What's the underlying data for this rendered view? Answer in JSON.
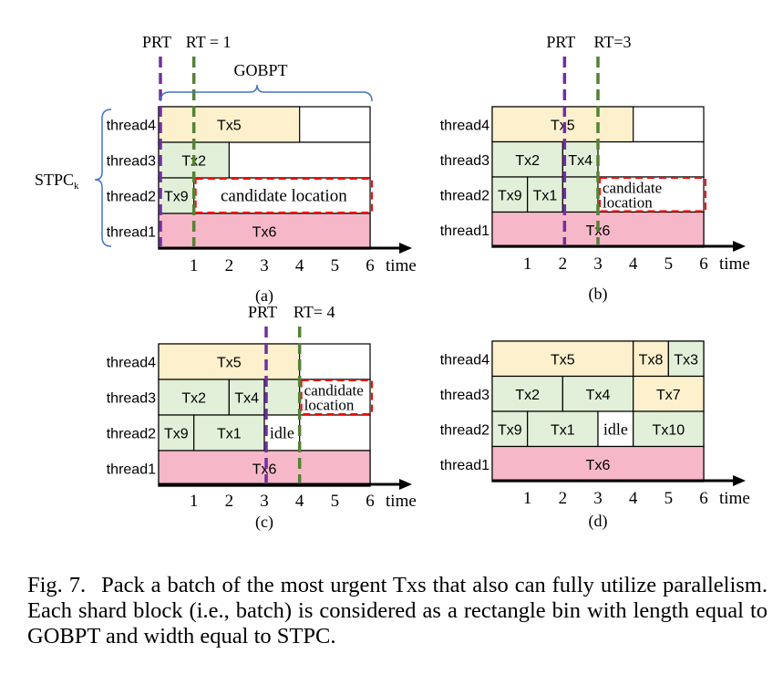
{
  "colors": {
    "tx5": "#fdf0cc",
    "tx_green": "#e2efd9",
    "tx6": "#f6b8c8",
    "prt_line": "#7030a0",
    "rt_line": "#548235",
    "candidate_border": "#ff0000",
    "brace": "#4472c4",
    "axis": "#000000"
  },
  "thread_labels": [
    "thread4",
    "thread3",
    "thread2",
    "thread1"
  ],
  "axis": {
    "ticks": [
      "1",
      "2",
      "3",
      "4",
      "5",
      "6"
    ],
    "label": "time"
  },
  "brace_labels": {
    "gobpt": "GOBPT",
    "stpc_main": "STPC",
    "stpc_sub": "k"
  },
  "panels": [
    {
      "id": "a",
      "label": "(a)",
      "prt_label": "PRT",
      "rt_label": "RT = 1",
      "prt_at": 0,
      "rt_at": 1,
      "show_gobpt": true,
      "show_stpc": true,
      "blocks": [
        {
          "row": 0,
          "start": 0,
          "end": 4,
          "text": "Tx5",
          "kind": "yellow"
        },
        {
          "row": 1,
          "start": 0,
          "end": 2,
          "text": "Tx2",
          "kind": "green"
        },
        {
          "row": 2,
          "start": 0,
          "end": 1,
          "text": "Tx9",
          "kind": "green"
        },
        {
          "row": 3,
          "start": 0,
          "end": 6,
          "text": "Tx6",
          "kind": "pink"
        }
      ],
      "candidate": {
        "row": 2,
        "start": 1,
        "end": 6,
        "lines": [
          "candidate  location"
        ]
      }
    },
    {
      "id": "b",
      "label": "(b)",
      "prt_label": "PRT",
      "rt_label": "RT=3",
      "prt_at": 2,
      "rt_at": 3,
      "show_gobpt": false,
      "show_stpc": false,
      "blocks": [
        {
          "row": 0,
          "start": 0,
          "end": 4,
          "text": "Tx5",
          "kind": "yellow"
        },
        {
          "row": 1,
          "start": 0,
          "end": 2,
          "text": "Tx2",
          "kind": "green"
        },
        {
          "row": 1,
          "start": 2,
          "end": 3,
          "text": "Tx4",
          "kind": "green"
        },
        {
          "row": 2,
          "start": 0,
          "end": 1,
          "text": "Tx9",
          "kind": "green"
        },
        {
          "row": 2,
          "start": 1,
          "end": 2,
          "text": "Tx1",
          "kind": "green"
        },
        {
          "row": 2,
          "start": 2,
          "end": 3,
          "text": "",
          "kind": "green"
        },
        {
          "row": 3,
          "start": 0,
          "end": 6,
          "text": "Tx6",
          "kind": "pink"
        }
      ],
      "candidate": {
        "row": 2,
        "start": 3,
        "end": 6,
        "lines": [
          "candidate",
          "location"
        ]
      }
    },
    {
      "id": "c",
      "label": "(c)",
      "prt_label": "PRT",
      "rt_label": "RT= 4",
      "prt_at": 3,
      "rt_at": 4,
      "show_gobpt": false,
      "show_stpc": false,
      "blocks": [
        {
          "row": 0,
          "start": 0,
          "end": 4,
          "text": "Tx5",
          "kind": "yellow"
        },
        {
          "row": 1,
          "start": 0,
          "end": 2,
          "text": "Tx2",
          "kind": "green"
        },
        {
          "row": 1,
          "start": 2,
          "end": 3,
          "text": "Tx4",
          "kind": "green"
        },
        {
          "row": 1,
          "start": 3,
          "end": 4,
          "text": "",
          "kind": "green"
        },
        {
          "row": 2,
          "start": 0,
          "end": 1,
          "text": "Tx9",
          "kind": "green"
        },
        {
          "row": 2,
          "start": 1,
          "end": 3,
          "text": "Tx1",
          "kind": "green"
        },
        {
          "row": 2,
          "start": 3,
          "end": 4,
          "text": "idle",
          "kind": "idle"
        },
        {
          "row": 3,
          "start": 0,
          "end": 6,
          "text": "Tx6",
          "kind": "pink"
        }
      ],
      "candidate": {
        "row": 1,
        "start": 4,
        "end": 6,
        "lines": [
          "candidate",
          "location"
        ]
      }
    },
    {
      "id": "d",
      "label": "(d)",
      "prt_label": "",
      "rt_label": "",
      "prt_at": null,
      "rt_at": null,
      "show_gobpt": false,
      "show_stpc": false,
      "blocks": [
        {
          "row": 0,
          "start": 0,
          "end": 4,
          "text": "Tx5",
          "kind": "yellow"
        },
        {
          "row": 0,
          "start": 4,
          "end": 5,
          "text": "Tx8",
          "kind": "yellow"
        },
        {
          "row": 0,
          "start": 5,
          "end": 6,
          "text": "Tx3",
          "kind": "green"
        },
        {
          "row": 1,
          "start": 0,
          "end": 2,
          "text": "Tx2",
          "kind": "green"
        },
        {
          "row": 1,
          "start": 2,
          "end": 4,
          "text": "Tx4",
          "kind": "green"
        },
        {
          "row": 1,
          "start": 4,
          "end": 6,
          "text": "Tx7",
          "kind": "yellow"
        },
        {
          "row": 2,
          "start": 0,
          "end": 1,
          "text": "Tx9",
          "kind": "green"
        },
        {
          "row": 2,
          "start": 1,
          "end": 3,
          "text": "Tx1",
          "kind": "green"
        },
        {
          "row": 2,
          "start": 3,
          "end": 4,
          "text": "idle",
          "kind": "idle"
        },
        {
          "row": 2,
          "start": 4,
          "end": 6,
          "text": "Tx10",
          "kind": "green"
        },
        {
          "row": 3,
          "start": 0,
          "end": 6,
          "text": "Tx6",
          "kind": "pink"
        }
      ],
      "candidate": null
    }
  ],
  "caption": {
    "label": "Fig. 7.",
    "text": "Pack a batch of the most urgent Txs that also can fully utilize parallelism. Each shard block (i.e., batch) is considered as a rectangle bin with length equal to GOBPT and width equal to STPC."
  }
}
